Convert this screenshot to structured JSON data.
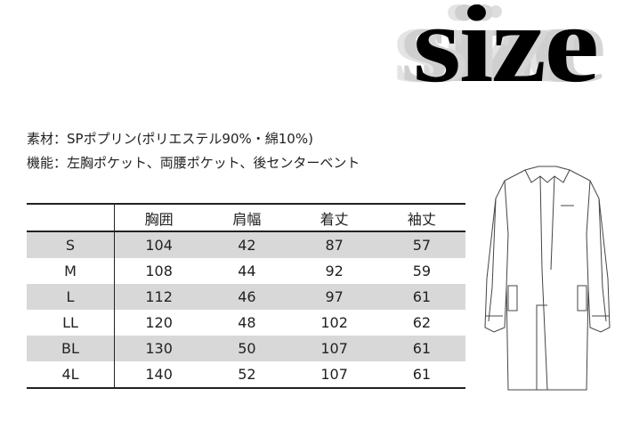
{
  "logo": {
    "text": "size"
  },
  "specs": {
    "material": "素材：SPポプリン(ポリエステル90%・綿10%)",
    "features": "機能：左胸ポケット、両腰ポケット、後センターベント"
  },
  "table": {
    "headers": [
      "",
      "胸囲",
      "肩幅",
      "着丈",
      "袖丈"
    ],
    "rows": [
      {
        "size": "S",
        "values": [
          "104",
          "42",
          "87",
          "57"
        ]
      },
      {
        "size": "M",
        "values": [
          "108",
          "44",
          "92",
          "59"
        ]
      },
      {
        "size": "L",
        "values": [
          "112",
          "46",
          "97",
          "61"
        ]
      },
      {
        "size": "LL",
        "values": [
          "120",
          "48",
          "102",
          "62"
        ]
      },
      {
        "size": "BL",
        "values": [
          "130",
          "50",
          "107",
          "61"
        ]
      },
      {
        "size": "4L",
        "values": [
          "140",
          "52",
          "107",
          "61"
        ]
      }
    ],
    "stripe_color": "#d8d8d8"
  },
  "illustration": {
    "icon": "lab-coat-icon"
  }
}
